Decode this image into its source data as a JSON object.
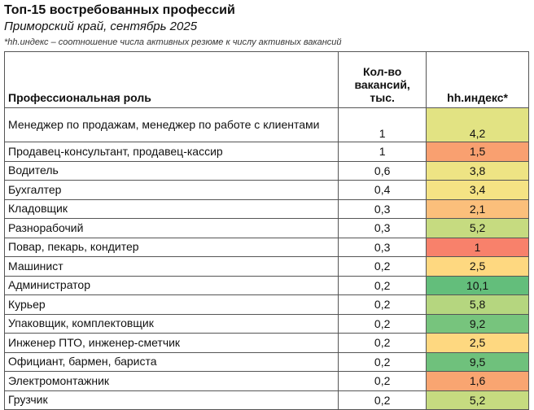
{
  "header": {
    "title": "Топ-15 востребованных профессий",
    "subtitle": "Приморский край, сентябрь 2025",
    "note": "*hh.индекс – соотношение числа активных резюме к числу активных вакансий"
  },
  "table": {
    "columns": [
      "Профессиональная роль",
      "Кол-во вакансий, тыс.",
      "hh.индекс*"
    ],
    "rows": [
      [
        "Менеджер по продажам, менеджер по работе с клиентами",
        "1",
        "4,2"
      ],
      [
        "Продавец-консультант, продавец-кассир",
        "1",
        "1,5"
      ],
      [
        "Водитель",
        "0,6",
        "3,8"
      ],
      [
        "Бухгалтер",
        "0,4",
        "3,4"
      ],
      [
        "Кладовщик",
        "0,3",
        "2,1"
      ],
      [
        "Разнорабочий",
        "0,3",
        "5,2"
      ],
      [
        "Повар, пекарь, кондитер",
        "0,3",
        "1"
      ],
      [
        "Машинист",
        "0,2",
        "2,5"
      ],
      [
        "Администратор",
        "0,2",
        "10,1"
      ],
      [
        "Курьер",
        "0,2",
        "5,8"
      ],
      [
        "Упаковщик, комплектовщик",
        "0,2",
        "9,2"
      ],
      [
        "Инженер ПТО, инженер-сметчик",
        "0,2",
        "2,5"
      ],
      [
        "Официант, бармен, бариста",
        "0,2",
        "9,5"
      ],
      [
        "Электромонтажник",
        "0,2",
        "1,6"
      ],
      [
        "Грузчик",
        "0,2",
        "5,2"
      ]
    ],
    "index_colors": [
      "#e2e383",
      "#f9a070",
      "#eee484",
      "#f5e384",
      "#fbbf7b",
      "#c6db80",
      "#f8816b",
      "#fed880",
      "#63be7b",
      "#b5d67f",
      "#77c47d",
      "#fed880",
      "#6fc17c",
      "#f9a571",
      "#c6db80"
    ]
  }
}
